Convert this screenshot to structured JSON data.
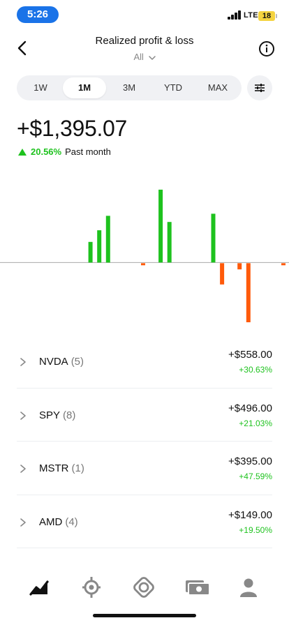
{
  "status": {
    "time": "5:26",
    "network": "LTE",
    "battery": "18"
  },
  "header": {
    "title": "Realized profit & loss",
    "filter": "All",
    "back_icon": "chevron-left-icon",
    "info_icon": "info-icon"
  },
  "periods": {
    "tabs": [
      {
        "label": "1W"
      },
      {
        "label": "1M",
        "active": true
      },
      {
        "label": "3M"
      },
      {
        "label": "YTD"
      },
      {
        "label": "MAX"
      }
    ],
    "settings_icon": "sliders-icon"
  },
  "summary": {
    "total": "+$1,395.07",
    "percent": "20.56%",
    "range": "Past month",
    "direction": "up"
  },
  "chart_data": {
    "type": "bar",
    "title": "",
    "xlabel": "",
    "ylabel": "",
    "values": [
      0,
      0,
      0,
      0,
      0,
      0,
      0,
      0,
      0,
      0,
      30,
      47,
      68,
      0,
      0,
      0,
      -3,
      0,
      106,
      59,
      0,
      0,
      0,
      0,
      71,
      -31,
      0,
      -9,
      -86,
      0,
      0,
      0,
      -3
    ],
    "ylim": [
      -90,
      110
    ],
    "grid": false,
    "colors": {
      "positive": "#1ec21e",
      "negative": "#ff5a0a",
      "baseline": "#aaaaaa"
    }
  },
  "positions": [
    {
      "symbol": "NVDA",
      "count": "(5)",
      "amount": "+$558.00",
      "percent": "+30.63%"
    },
    {
      "symbol": "SPY",
      "count": "(8)",
      "amount": "+$496.00",
      "percent": "+21.03%"
    },
    {
      "symbol": "MSTR",
      "count": "(1)",
      "amount": "+$395.00",
      "percent": "+47.59%"
    },
    {
      "symbol": "AMD",
      "count": "(4)",
      "amount": "+$149.00",
      "percent": "+19.50%"
    }
  ],
  "tabbar": {
    "items": [
      {
        "icon": "investing-chart-icon",
        "active": true
      },
      {
        "icon": "crypto-icon"
      },
      {
        "icon": "strategies-icon"
      },
      {
        "icon": "cash-icon"
      },
      {
        "icon": "account-icon"
      }
    ]
  },
  "colors": {
    "accent_green": "#1ec21e",
    "loss_orange": "#ff5a0a",
    "status_pill": "#1a73e8"
  }
}
